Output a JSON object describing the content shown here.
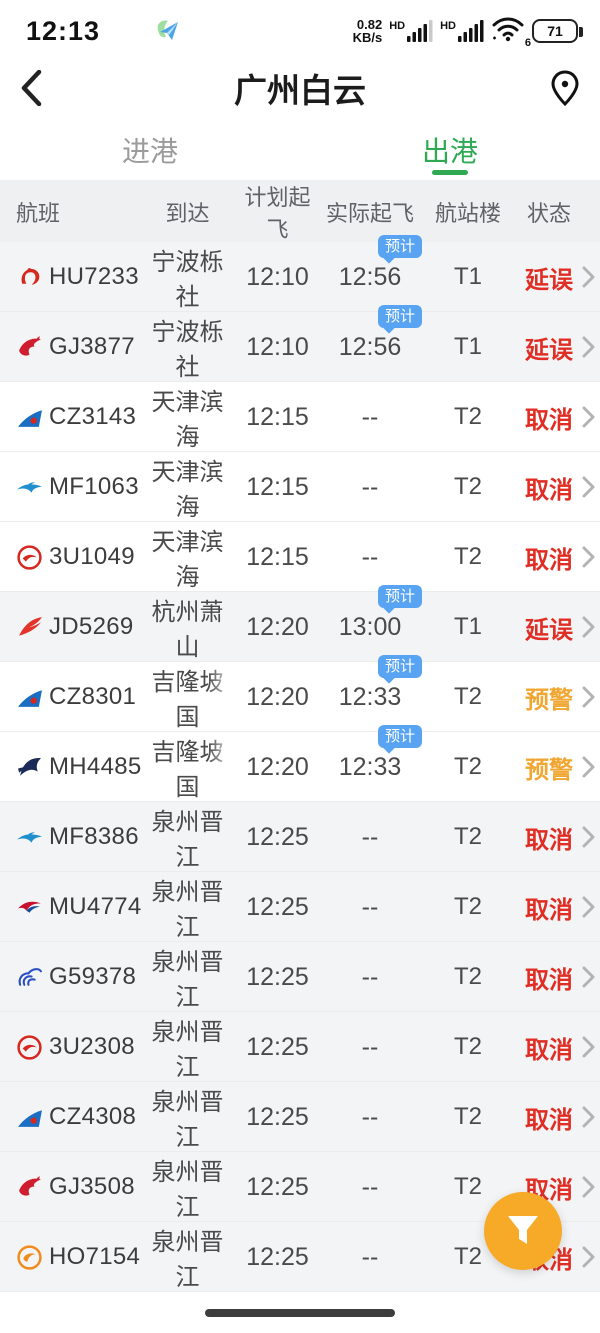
{
  "status_bar": {
    "time": "12:13",
    "app_icon": "paper-plane-app-icon",
    "net_speed_value": "0.82",
    "net_speed_unit": "KB/s",
    "sim1_label": "HD",
    "sim2_label": "HD",
    "wifi_band_label": "6",
    "battery_percent": "71"
  },
  "header": {
    "back_icon": "chevron-left-icon",
    "title": "广州白云",
    "location_icon": "location-pin-icon"
  },
  "tabs": {
    "arrivals": "进港",
    "departures": "出港",
    "active": "departures",
    "active_color": "#2faa53"
  },
  "table": {
    "columns": [
      "航班",
      "到达",
      "计划起飞",
      "实际起飞",
      "航站楼",
      "状态"
    ],
    "estimate_badge_label": "预计",
    "status_colors": {
      "delayed": "#e02e24",
      "cancelled": "#e02e24",
      "warning": "#f0a732"
    },
    "rows": [
      {
        "flight": "HU7233",
        "airline_logo": "hainan-airlines-logo",
        "destination": "宁波栎社",
        "scheduled": "12:10",
        "actual": "12:56",
        "estimate": true,
        "terminal": "T1",
        "status": "延误",
        "status_kind": "delayed",
        "shaded": true,
        "dest_faded": false
      },
      {
        "flight": "GJ3877",
        "airline_logo": "loong-air-logo",
        "destination": "宁波栎社",
        "scheduled": "12:10",
        "actual": "12:56",
        "estimate": true,
        "terminal": "T1",
        "status": "延误",
        "status_kind": "delayed",
        "shaded": true,
        "dest_faded": false
      },
      {
        "flight": "CZ3143",
        "airline_logo": "china-southern-logo",
        "destination": "天津滨海",
        "scheduled": "12:15",
        "actual": "--",
        "estimate": false,
        "terminal": "T2",
        "status": "取消",
        "status_kind": "cancelled",
        "shaded": false,
        "dest_faded": false
      },
      {
        "flight": "MF1063",
        "airline_logo": "xiamen-air-logo",
        "destination": "天津滨海",
        "scheduled": "12:15",
        "actual": "--",
        "estimate": false,
        "terminal": "T2",
        "status": "取消",
        "status_kind": "cancelled",
        "shaded": false,
        "dest_faded": false
      },
      {
        "flight": "3U1049",
        "airline_logo": "sichuan-airlines-logo",
        "destination": "天津滨海",
        "scheduled": "12:15",
        "actual": "--",
        "estimate": false,
        "terminal": "T2",
        "status": "取消",
        "status_kind": "cancelled",
        "shaded": false,
        "dest_faded": false
      },
      {
        "flight": "JD5269",
        "airline_logo": "capital-airlines-logo",
        "destination": "杭州萧山",
        "scheduled": "12:20",
        "actual": "13:00",
        "estimate": true,
        "terminal": "T1",
        "status": "延误",
        "status_kind": "delayed",
        "shaded": true,
        "dest_faded": false
      },
      {
        "flight": "CZ8301",
        "airline_logo": "china-southern-logo",
        "destination": "吉隆坡国",
        "scheduled": "12:20",
        "actual": "12:33",
        "estimate": true,
        "terminal": "T2",
        "status": "预警",
        "status_kind": "warning",
        "shaded": false,
        "dest_faded": true
      },
      {
        "flight": "MH4485",
        "airline_logo": "malaysia-airlines-logo",
        "destination": "吉隆坡国",
        "scheduled": "12:20",
        "actual": "12:33",
        "estimate": true,
        "terminal": "T2",
        "status": "预警",
        "status_kind": "warning",
        "shaded": false,
        "dest_faded": true
      },
      {
        "flight": "MF8386",
        "airline_logo": "xiamen-air-logo",
        "destination": "泉州晋江",
        "scheduled": "12:25",
        "actual": "--",
        "estimate": false,
        "terminal": "T2",
        "status": "取消",
        "status_kind": "cancelled",
        "shaded": true,
        "dest_faded": false
      },
      {
        "flight": "MU4774",
        "airline_logo": "china-eastern-logo",
        "destination": "泉州晋江",
        "scheduled": "12:25",
        "actual": "--",
        "estimate": false,
        "terminal": "T2",
        "status": "取消",
        "status_kind": "cancelled",
        "shaded": true,
        "dest_faded": false
      },
      {
        "flight": "G59378",
        "airline_logo": "china-express-logo",
        "destination": "泉州晋江",
        "scheduled": "12:25",
        "actual": "--",
        "estimate": false,
        "terminal": "T2",
        "status": "取消",
        "status_kind": "cancelled",
        "shaded": true,
        "dest_faded": false
      },
      {
        "flight": "3U2308",
        "airline_logo": "sichuan-airlines-logo",
        "destination": "泉州晋江",
        "scheduled": "12:25",
        "actual": "--",
        "estimate": false,
        "terminal": "T2",
        "status": "取消",
        "status_kind": "cancelled",
        "shaded": true,
        "dest_faded": false
      },
      {
        "flight": "CZ4308",
        "airline_logo": "china-southern-logo",
        "destination": "泉州晋江",
        "scheduled": "12:25",
        "actual": "--",
        "estimate": false,
        "terminal": "T2",
        "status": "取消",
        "status_kind": "cancelled",
        "shaded": true,
        "dest_faded": false
      },
      {
        "flight": "GJ3508",
        "airline_logo": "loong-air-logo",
        "destination": "泉州晋江",
        "scheduled": "12:25",
        "actual": "--",
        "estimate": false,
        "terminal": "T2",
        "status": "取消",
        "status_kind": "cancelled",
        "shaded": true,
        "dest_faded": false
      },
      {
        "flight": "HO7154",
        "airline_logo": "juneyao-air-logo",
        "destination": "泉州晋江",
        "scheduled": "12:25",
        "actual": "--",
        "estimate": false,
        "terminal": "T2",
        "status": "取消",
        "status_kind": "cancelled",
        "shaded": true,
        "dest_faded": false
      }
    ]
  },
  "fab": {
    "icon": "filter-funnel-icon",
    "color": "#f7a928"
  }
}
